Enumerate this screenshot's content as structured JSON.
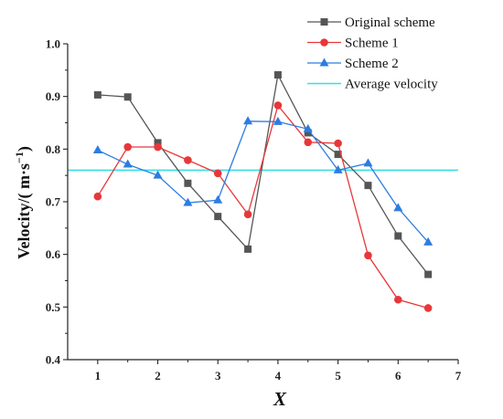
{
  "chart_data": {
    "type": "line",
    "title": "",
    "xlabel": "X",
    "ylabel_main": "Velocity/( m·s",
    "ylabel_exp": "−1",
    "ylabel_close": ")",
    "xlim": [
      0.5,
      7
    ],
    "ylim": [
      0.4,
      1.0
    ],
    "xticks": [
      1,
      2,
      3,
      4,
      5,
      6,
      7
    ],
    "yticks": [
      0.4,
      0.5,
      0.6,
      0.7,
      0.8,
      0.9,
      1.0
    ],
    "ytick_labels": [
      "0.4",
      "0.5",
      "0.6",
      "0.7",
      "0.8",
      "0.9",
      "1.0"
    ],
    "grid": false,
    "legend_position": "top-right",
    "x": [
      1,
      1.5,
      2,
      2.5,
      3,
      3.5,
      4,
      4.5,
      5,
      5.5,
      6,
      6.5
    ],
    "series": [
      {
        "name": "Original scheme",
        "color": "#555555",
        "marker": "square",
        "values": [
          0.903,
          0.899,
          0.812,
          0.735,
          0.672,
          0.61,
          0.941,
          0.831,
          0.79,
          0.731,
          0.635,
          0.562
        ]
      },
      {
        "name": "Scheme 1",
        "color": "#e8373a",
        "marker": "circle",
        "values": [
          0.71,
          0.804,
          0.804,
          0.779,
          0.754,
          0.676,
          0.883,
          0.813,
          0.811,
          0.598,
          0.514,
          0.498
        ]
      },
      {
        "name": "Scheme 2",
        "color": "#2b7de1",
        "marker": "triangle",
        "values": [
          0.798,
          0.771,
          0.75,
          0.698,
          0.703,
          0.853,
          0.852,
          0.838,
          0.76,
          0.773,
          0.688,
          0.623
        ]
      }
    ],
    "reference_line": {
      "name": "Average velocity",
      "color": "#33e0e6",
      "value": 0.76
    }
  }
}
